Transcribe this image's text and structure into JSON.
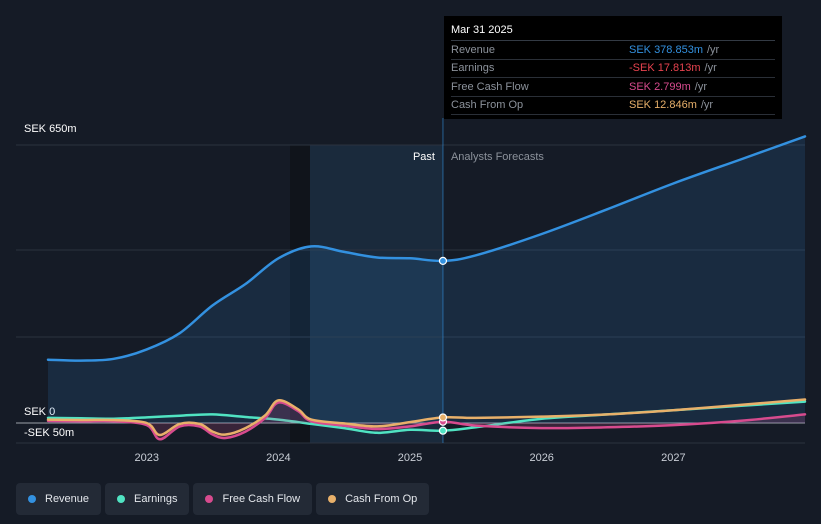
{
  "chart_data": {
    "type": "line",
    "currency_unit": "SEK",
    "y_top_label": "SEK 650m",
    "y_zero_label": "SEK 0",
    "y_bottom_label": "-SEK 50m",
    "ylim": [
      -50,
      650
    ],
    "xlim": [
      2022.25,
      2028.0
    ],
    "x_ticks": [
      "2023",
      "2024",
      "2025",
      "2026",
      "2027"
    ],
    "x_tick_values": [
      2023,
      2024,
      2025,
      2026,
      2027
    ],
    "divider_x": 2025.25,
    "region_labels": {
      "past": "Past",
      "forecast": "Analysts Forecasts"
    },
    "series": [
      {
        "name": "Revenue",
        "color": "#3391e0",
        "x": [
          2022.25,
          2022.5,
          2022.75,
          2023.0,
          2023.25,
          2023.5,
          2023.75,
          2024.0,
          2024.25,
          2024.5,
          2024.75,
          2025.0,
          2025.25,
          2025.5,
          2026.0,
          2026.5,
          2027.0,
          2027.5,
          2028.0
        ],
        "values": [
          148,
          146,
          150,
          172,
          210,
          275,
          325,
          385,
          413,
          400,
          387,
          385,
          379,
          392,
          442,
          500,
          560,
          615,
          670
        ]
      },
      {
        "name": "Earnings",
        "color": "#50e3c2",
        "x": [
          2022.25,
          2022.5,
          2022.75,
          2023.0,
          2023.25,
          2023.5,
          2023.75,
          2024.0,
          2024.25,
          2024.5,
          2024.75,
          2025.0,
          2025.25,
          2025.5,
          2026.0,
          2026.5,
          2027.0,
          2027.5,
          2028.0
        ],
        "values": [
          12,
          11,
          10,
          13,
          17,
          20,
          14,
          8,
          -2,
          -12,
          -23,
          -16,
          -18,
          -10,
          10,
          20,
          30,
          40,
          50
        ]
      },
      {
        "name": "Free Cash Flow",
        "color": "#d74b8e",
        "x": [
          2022.25,
          2022.5,
          2022.75,
          2023.0,
          2023.1,
          2023.25,
          2023.4,
          2023.5,
          2023.6,
          2023.75,
          2023.9,
          2024.0,
          2024.15,
          2024.25,
          2024.5,
          2024.75,
          2025.0,
          2025.25,
          2025.5,
          2026.0,
          2026.5,
          2027.0,
          2027.5,
          2028.0
        ],
        "values": [
          5,
          4,
          4,
          -5,
          -38,
          -8,
          -8,
          -27,
          -35,
          -20,
          12,
          48,
          28,
          4,
          -6,
          -14,
          -8,
          3,
          -6,
          -12,
          -10,
          -5,
          5,
          20
        ]
      },
      {
        "name": "Cash From Op",
        "color": "#e8b06a",
        "x": [
          2022.25,
          2022.5,
          2022.75,
          2023.0,
          2023.1,
          2023.25,
          2023.4,
          2023.5,
          2023.6,
          2023.75,
          2023.9,
          2024.0,
          2024.15,
          2024.25,
          2024.5,
          2024.75,
          2025.0,
          2025.25,
          2025.5,
          2026.0,
          2026.5,
          2027.0,
          2027.5,
          2028.0
        ],
        "values": [
          8,
          7,
          7,
          0,
          -28,
          -2,
          -2,
          -20,
          -27,
          -12,
          18,
          53,
          32,
          8,
          -1,
          -8,
          2,
          13,
          12,
          15,
          20,
          30,
          42,
          55
        ]
      }
    ],
    "tooltip": {
      "date": "Mar 31 2025",
      "rows": [
        {
          "label": "Revenue",
          "value": "SEK 378.853m",
          "unit": "/yr",
          "color": "#3391e0"
        },
        {
          "label": "Earnings",
          "value": "-SEK 17.813m",
          "unit": "/yr",
          "color": "#e8434f"
        },
        {
          "label": "Free Cash Flow",
          "value": "SEK 2.799m",
          "unit": "/yr",
          "color": "#d74b8e"
        },
        {
          "label": "Cash From Op",
          "value": "SEK 12.846m",
          "unit": "/yr",
          "color": "#e8b06a"
        }
      ]
    }
  },
  "legend": [
    {
      "label": "Revenue",
      "color": "#3391e0"
    },
    {
      "label": "Earnings",
      "color": "#50e3c2"
    },
    {
      "label": "Free Cash Flow",
      "color": "#d74b8e"
    },
    {
      "label": "Cash From Op",
      "color": "#e8b06a"
    }
  ]
}
